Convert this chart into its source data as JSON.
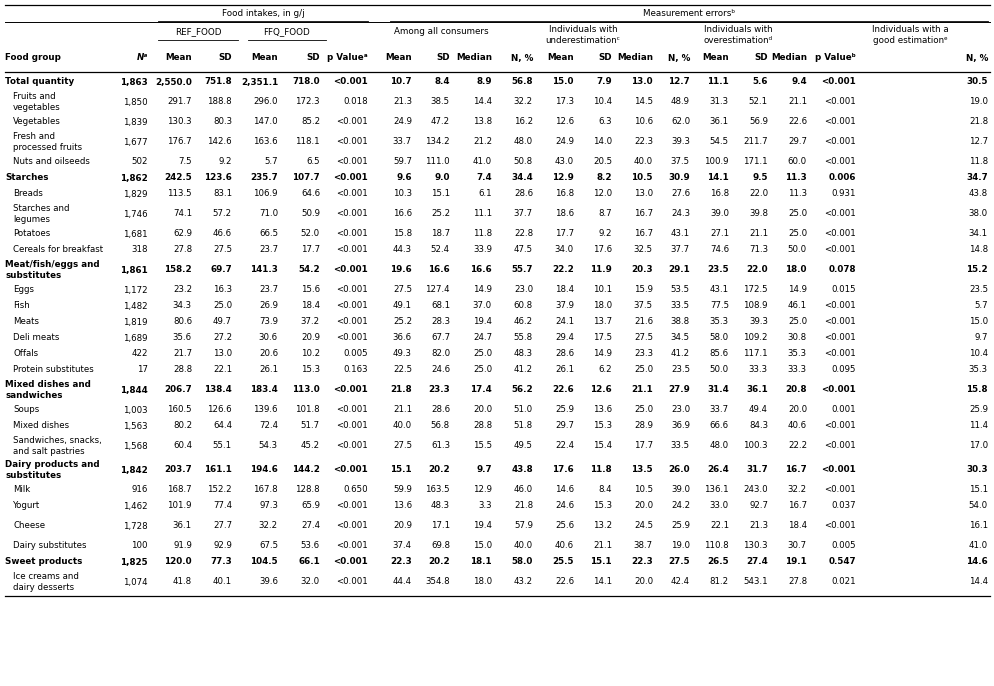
{
  "rows": [
    [
      "Total quantity",
      "1,863",
      "2,550.0",
      "751.8",
      "2,351.1",
      "718.0",
      "<0.001",
      "10.7",
      "8.4",
      "8.9",
      "56.8",
      "15.0",
      "7.9",
      "13.0",
      "12.7",
      "11.1",
      "5.6",
      "9.4",
      "<0.001",
      "30.5"
    ],
    [
      "Fruits and\nvegetables",
      "1,850",
      "291.7",
      "188.8",
      "296.0",
      "172.3",
      "0.018",
      "21.3",
      "38.5",
      "14.4",
      "32.2",
      "17.3",
      "10.4",
      "14.5",
      "48.9",
      "31.3",
      "52.1",
      "21.1",
      "<0.001",
      "19.0"
    ],
    [
      "Vegetables",
      "1,839",
      "130.3",
      "80.3",
      "147.0",
      "85.2",
      "<0.001",
      "24.9",
      "47.2",
      "13.8",
      "16.2",
      "12.6",
      "6.3",
      "10.6",
      "62.0",
      "36.1",
      "56.9",
      "22.6",
      "<0.001",
      "21.8"
    ],
    [
      "Fresh and\nprocessed fruits",
      "1,677",
      "176.7",
      "142.6",
      "163.6",
      "118.1",
      "<0.001",
      "33.7",
      "134.2",
      "21.2",
      "48.0",
      "24.9",
      "14.0",
      "22.3",
      "39.3",
      "54.5",
      "211.7",
      "29.7",
      "<0.001",
      "12.7"
    ],
    [
      "Nuts and oilseeds",
      "502",
      "7.5",
      "9.2",
      "5.7",
      "6.5",
      "<0.001",
      "59.7",
      "111.0",
      "41.0",
      "50.8",
      "43.0",
      "20.5",
      "40.0",
      "37.5",
      "100.9",
      "171.1",
      "60.0",
      "<0.001",
      "11.8"
    ],
    [
      "Starches",
      "1,862",
      "242.5",
      "123.6",
      "235.7",
      "107.7",
      "<0.001",
      "9.6",
      "9.0",
      "7.4",
      "34.4",
      "12.9",
      "8.2",
      "10.5",
      "30.9",
      "14.1",
      "9.5",
      "11.3",
      "0.006",
      "34.7"
    ],
    [
      "Breads",
      "1,829",
      "113.5",
      "83.1",
      "106.9",
      "64.6",
      "<0.001",
      "10.3",
      "15.1",
      "6.1",
      "28.6",
      "16.8",
      "12.0",
      "13.0",
      "27.6",
      "16.8",
      "22.0",
      "11.3",
      "0.931",
      "43.8"
    ],
    [
      "Starches and\nlegumes",
      "1,746",
      "74.1",
      "57.2",
      "71.0",
      "50.9",
      "<0.001",
      "16.6",
      "25.2",
      "11.1",
      "37.7",
      "18.6",
      "8.7",
      "16.7",
      "24.3",
      "39.0",
      "39.8",
      "25.0",
      "<0.001",
      "38.0"
    ],
    [
      "Potatoes",
      "1,681",
      "62.9",
      "46.6",
      "66.5",
      "52.0",
      "<0.001",
      "15.8",
      "18.7",
      "11.8",
      "22.8",
      "17.7",
      "9.2",
      "16.7",
      "43.1",
      "27.1",
      "21.1",
      "25.0",
      "<0.001",
      "34.1"
    ],
    [
      "Cereals for breakfast",
      "318",
      "27.8",
      "27.5",
      "23.7",
      "17.7",
      "<0.001",
      "44.3",
      "52.4",
      "33.9",
      "47.5",
      "34.0",
      "17.6",
      "32.5",
      "37.7",
      "74.6",
      "71.3",
      "50.0",
      "<0.001",
      "14.8"
    ],
    [
      "Meat/fish/eggs and\nsubstitutes",
      "1,861",
      "158.2",
      "69.7",
      "141.3",
      "54.2",
      "<0.001",
      "19.6",
      "16.6",
      "16.6",
      "55.7",
      "22.2",
      "11.9",
      "20.3",
      "29.1",
      "23.5",
      "22.0",
      "18.0",
      "0.078",
      "15.2"
    ],
    [
      "Eggs",
      "1,172",
      "23.2",
      "16.3",
      "23.7",
      "15.6",
      "<0.001",
      "27.5",
      "127.4",
      "14.9",
      "23.0",
      "18.4",
      "10.1",
      "15.9",
      "53.5",
      "43.1",
      "172.5",
      "14.9",
      "0.015",
      "23.5"
    ],
    [
      "Fish",
      "1,482",
      "34.3",
      "25.0",
      "26.9",
      "18.4",
      "<0.001",
      "49.1",
      "68.1",
      "37.0",
      "60.8",
      "37.9",
      "18.0",
      "37.5",
      "33.5",
      "77.5",
      "108.9",
      "46.1",
      "<0.001",
      "5.7"
    ],
    [
      "Meats",
      "1,819",
      "80.6",
      "49.7",
      "73.9",
      "37.2",
      "<0.001",
      "25.2",
      "28.3",
      "19.4",
      "46.2",
      "24.1",
      "13.7",
      "21.6",
      "38.8",
      "35.3",
      "39.3",
      "25.0",
      "<0.001",
      "15.0"
    ],
    [
      "Deli meats",
      "1,689",
      "35.6",
      "27.2",
      "30.6",
      "20.9",
      "<0.001",
      "36.6",
      "67.7",
      "24.7",
      "55.8",
      "29.4",
      "17.5",
      "27.5",
      "34.5",
      "58.0",
      "109.2",
      "30.8",
      "<0.001",
      "9.7"
    ],
    [
      "Offals",
      "422",
      "21.7",
      "13.0",
      "20.6",
      "10.2",
      "0.005",
      "49.3",
      "82.0",
      "25.0",
      "48.3",
      "28.6",
      "14.9",
      "23.3",
      "41.2",
      "85.6",
      "117.1",
      "35.3",
      "<0.001",
      "10.4"
    ],
    [
      "Protein substitutes",
      "17",
      "28.8",
      "22.1",
      "26.1",
      "15.3",
      "0.163",
      "22.5",
      "24.6",
      "25.0",
      "41.2",
      "26.1",
      "6.2",
      "25.0",
      "23.5",
      "50.0",
      "33.3",
      "33.3",
      "0.095",
      "35.3"
    ],
    [
      "Mixed dishes and\nsandwiches",
      "1,844",
      "206.7",
      "138.4",
      "183.4",
      "113.0",
      "<0.001",
      "21.8",
      "23.3",
      "17.4",
      "56.2",
      "22.6",
      "12.6",
      "21.1",
      "27.9",
      "31.4",
      "36.1",
      "20.8",
      "<0.001",
      "15.8"
    ],
    [
      "Soups",
      "1,003",
      "160.5",
      "126.6",
      "139.6",
      "101.8",
      "<0.001",
      "21.1",
      "28.6",
      "20.0",
      "51.0",
      "25.9",
      "13.6",
      "25.0",
      "23.0",
      "33.7",
      "49.4",
      "20.0",
      "0.001",
      "25.9"
    ],
    [
      "Mixed dishes",
      "1,563",
      "80.2",
      "64.4",
      "72.4",
      "51.7",
      "<0.001",
      "40.0",
      "56.8",
      "28.8",
      "51.8",
      "29.7",
      "15.3",
      "28.9",
      "36.9",
      "66.6",
      "84.3",
      "40.6",
      "<0.001",
      "11.4"
    ],
    [
      "Sandwiches, snacks,\nand salt pastries",
      "1,568",
      "60.4",
      "55.1",
      "54.3",
      "45.2",
      "<0.001",
      "27.5",
      "61.3",
      "15.5",
      "49.5",
      "22.4",
      "15.4",
      "17.7",
      "33.5",
      "48.0",
      "100.3",
      "22.2",
      "<0.001",
      "17.0"
    ],
    [
      "Dairy products and\nsubstitutes",
      "1,842",
      "203.7",
      "161.1",
      "194.6",
      "144.2",
      "<0.001",
      "15.1",
      "20.2",
      "9.7",
      "43.8",
      "17.6",
      "11.8",
      "13.5",
      "26.0",
      "26.4",
      "31.7",
      "16.7",
      "<0.001",
      "30.3"
    ],
    [
      "Milk",
      "916",
      "168.7",
      "152.2",
      "167.8",
      "128.8",
      "0.650",
      "59.9",
      "163.5",
      "12.9",
      "46.0",
      "14.6",
      "8.4",
      "10.5",
      "39.0",
      "136.1",
      "243.0",
      "32.2",
      "<0.001",
      "15.1"
    ],
    [
      "Yogurt",
      "1,462",
      "101.9",
      "77.4",
      "97.3",
      "65.9",
      "<0.001",
      "13.6",
      "48.3",
      "3.3",
      "21.8",
      "24.6",
      "15.3",
      "20.0",
      "24.2",
      "33.0",
      "92.7",
      "16.7",
      "0.037",
      "54.0"
    ],
    [
      "Cheese",
      "1,728",
      "36.1",
      "27.7",
      "32.2",
      "27.4",
      "<0.001",
      "20.9",
      "17.1",
      "19.4",
      "57.9",
      "25.6",
      "13.2",
      "24.5",
      "25.9",
      "22.1",
      "21.3",
      "18.4",
      "<0.001",
      "16.1"
    ],
    [
      "Dairy substitutes",
      "100",
      "91.9",
      "92.9",
      "67.5",
      "53.6",
      "<0.001",
      "37.4",
      "69.8",
      "15.0",
      "40.0",
      "40.6",
      "21.1",
      "38.7",
      "19.0",
      "110.8",
      "130.3",
      "30.7",
      "0.005",
      "41.0"
    ],
    [
      "Sweet products",
      "1,825",
      "120.0",
      "77.3",
      "104.5",
      "66.1",
      "<0.001",
      "22.3",
      "20.2",
      "18.1",
      "58.0",
      "25.5",
      "15.1",
      "22.3",
      "27.5",
      "26.5",
      "27.4",
      "19.1",
      "0.547",
      "14.6"
    ],
    [
      "Ice creams and\ndairy desserts",
      "1,074",
      "41.8",
      "40.1",
      "39.6",
      "32.0",
      "<0.001",
      "44.4",
      "354.8",
      "18.0",
      "43.2",
      "22.6",
      "14.1",
      "20.0",
      "42.4",
      "81.2",
      "543.1",
      "27.8",
      "0.021",
      "14.4"
    ]
  ],
  "bold_rows": [
    0,
    5,
    10,
    17,
    21,
    26
  ],
  "indent_rows": [
    1,
    2,
    3,
    4,
    6,
    7,
    8,
    9,
    11,
    12,
    13,
    14,
    15,
    16,
    18,
    19,
    20,
    22,
    23,
    24,
    25,
    27
  ],
  "two_line_rows": [
    1,
    3,
    7,
    10,
    17,
    20,
    21,
    24,
    27
  ],
  "background_color": "#ffffff"
}
